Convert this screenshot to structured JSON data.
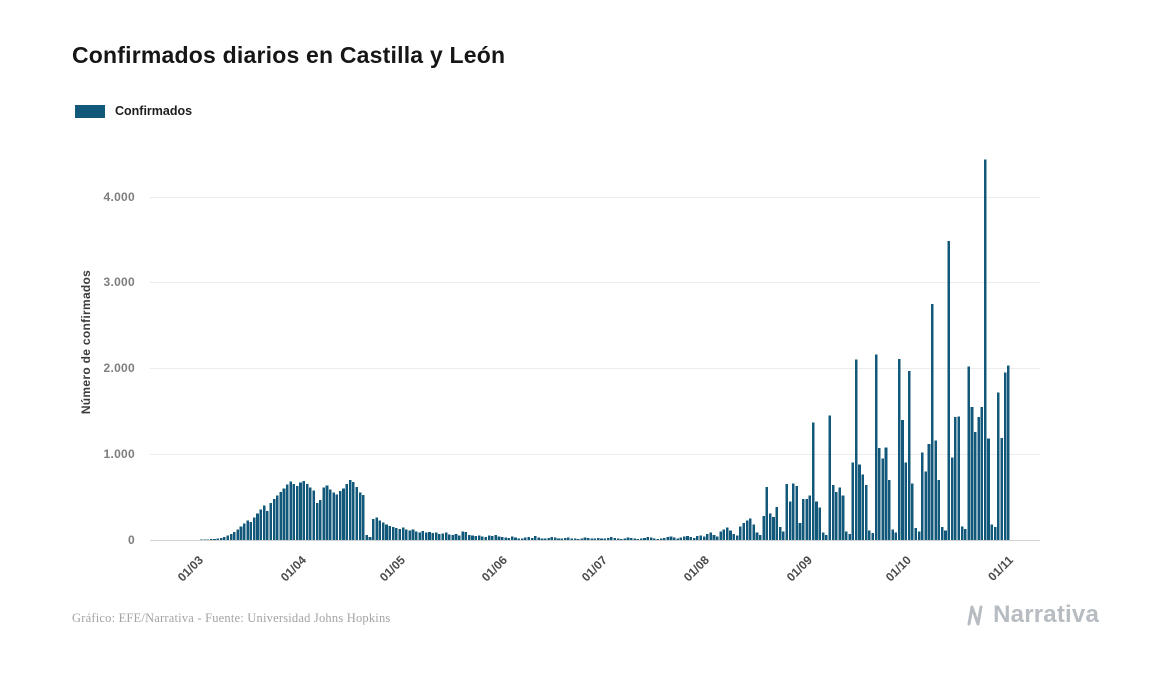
{
  "header": {
    "title": "Confirmados diarios en Castilla y León"
  },
  "legend": {
    "label": "Confirmados",
    "color": "#11587a"
  },
  "footer": {
    "credit": "Gráfico: EFE/Narrativa - Fuente: Universidad Johns Hopkins",
    "brand": "Narrativa"
  },
  "chart_data": {
    "type": "bar",
    "title": "Confirmados diarios en Castilla y León",
    "xlabel": "",
    "ylabel": "Número de confirmados",
    "series_name": "Confirmados",
    "bar_color": "#11587a",
    "background": "#ffffff",
    "grid": true,
    "legend_position": "top-left",
    "ylim": [
      0,
      4600
    ],
    "yticks": [
      0,
      1000,
      2000,
      3000,
      4000
    ],
    "ytick_labels": [
      "0",
      "1.000",
      "2.000",
      "3.000",
      "4.000"
    ],
    "x_unit": "day",
    "x_tick_labels": [
      "01/03",
      "01/04",
      "01/05",
      "01/06",
      "01/07",
      "01/08",
      "01/09",
      "01/10",
      "01/11"
    ],
    "x_ticks": [
      {
        "index": 14,
        "label": "01/03"
      },
      {
        "index": 45,
        "label": "01/04"
      },
      {
        "index": 75,
        "label": "01/05"
      },
      {
        "index": 106,
        "label": "01/06"
      },
      {
        "index": 136,
        "label": "01/07"
      },
      {
        "index": 167,
        "label": "01/08"
      },
      {
        "index": 198,
        "label": "01/09"
      },
      {
        "index": 228,
        "label": "01/10"
      },
      {
        "index": 259,
        "label": "01/11"
      }
    ],
    "values": [
      0,
      0,
      0,
      0,
      0,
      0,
      0,
      0,
      0,
      0,
      0,
      0,
      0,
      0,
      2,
      3,
      5,
      8,
      10,
      14,
      18,
      25,
      35,
      50,
      70,
      95,
      125,
      160,
      195,
      230,
      210,
      260,
      310,
      355,
      400,
      340,
      430,
      480,
      520,
      560,
      600,
      645,
      680,
      655,
      630,
      670,
      690,
      650,
      610,
      575,
      430,
      465,
      610,
      635,
      590,
      555,
      530,
      570,
      600,
      655,
      700,
      675,
      615,
      555,
      525,
      60,
      35,
      245,
      260,
      230,
      205,
      180,
      165,
      150,
      140,
      130,
      145,
      120,
      110,
      125,
      100,
      90,
      105,
      85,
      95,
      80,
      90,
      70,
      75,
      85,
      65,
      60,
      70,
      55,
      100,
      95,
      60,
      50,
      45,
      55,
      40,
      35,
      50,
      45,
      60,
      40,
      35,
      30,
      25,
      40,
      30,
      20,
      15,
      30,
      35,
      25,
      45,
      30,
      20,
      15,
      25,
      35,
      30,
      20,
      15,
      25,
      30,
      20,
      15,
      10,
      20,
      30,
      25,
      15,
      20,
      25,
      20,
      15,
      25,
      35,
      25,
      15,
      10,
      20,
      30,
      25,
      15,
      10,
      20,
      25,
      35,
      30,
      20,
      10,
      15,
      25,
      35,
      40,
      30,
      20,
      30,
      40,
      45,
      35,
      25,
      45,
      50,
      40,
      70,
      90,
      60,
      40,
      100,
      120,
      145,
      110,
      70,
      50,
      160,
      200,
      230,
      250,
      180,
      90,
      60,
      280,
      620,
      310,
      270,
      385,
      150,
      100,
      650,
      450,
      660,
      630,
      200,
      480,
      480,
      520,
      1370,
      450,
      380,
      90,
      60,
      1450,
      640,
      560,
      610,
      520,
      100,
      70,
      900,
      2100,
      880,
      760,
      640,
      110,
      80,
      2160,
      1070,
      950,
      1080,
      700,
      120,
      90,
      2110,
      1400,
      900,
      1970,
      660,
      140,
      100,
      1020,
      800,
      1120,
      2750,
      1160,
      700,
      150,
      110,
      3480,
      960,
      1430,
      1440,
      160,
      130,
      2020,
      1550,
      1260,
      1430,
      1550,
      4430,
      1180,
      180,
      150,
      1720,
      1190,
      1950,
      2030
    ]
  }
}
